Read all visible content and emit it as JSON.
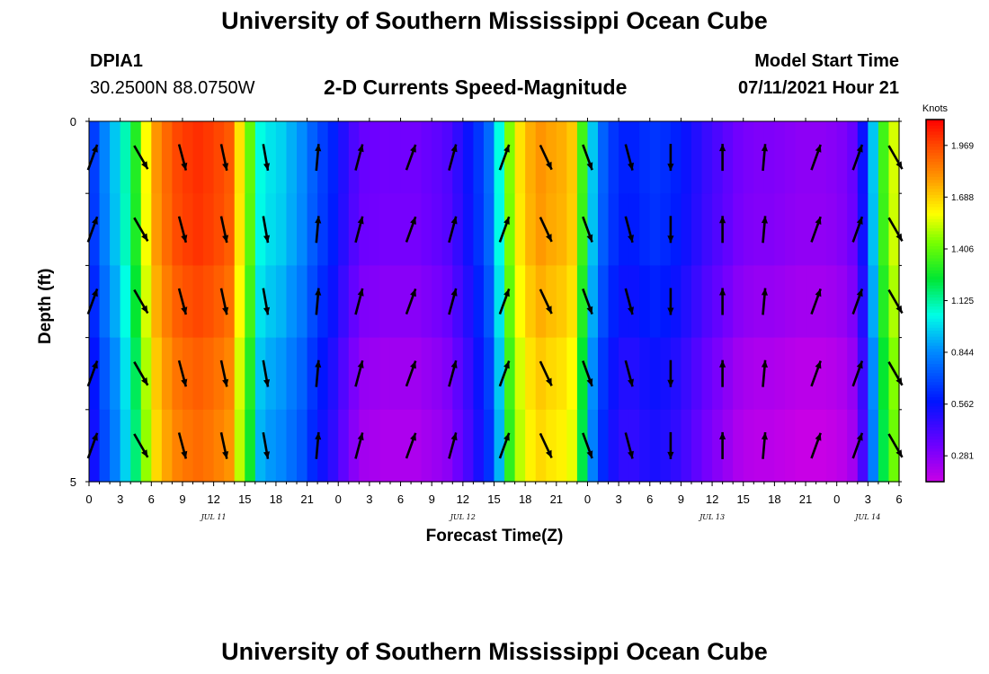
{
  "header": {
    "title": "University of Southern Mississippi Ocean Cube",
    "station_id": "DPIA1",
    "station_coords": "30.2500N  88.0750W",
    "chart_title": "2-D Currents Speed-Magnitude",
    "model_start_label": "Model Start Time",
    "model_start_value": "07/11/2021 Hour 21"
  },
  "footer": {
    "title": "University of Southern Mississippi Ocean Cube"
  },
  "chart_data": {
    "type": "heatmap",
    "title": "2-D Currents Speed-Magnitude",
    "xlabel": "Forecast Time(Z)",
    "ylabel": "Depth (ft)",
    "y_range": [
      0,
      5
    ],
    "y_tick_labels": [
      "0",
      "5"
    ],
    "x_tick_labels": [
      "0",
      "3",
      "6",
      "9",
      "12",
      "15",
      "18",
      "21",
      "0",
      "3",
      "6",
      "9",
      "12",
      "15",
      "18",
      "21",
      "0",
      "3",
      "6",
      "9",
      "12",
      "15",
      "18",
      "21",
      "0",
      "3",
      "6"
    ],
    "date_labels": [
      {
        "label": "JUL 11",
        "hour_index": 12
      },
      {
        "label": "JUL 12",
        "hour_index": 36
      },
      {
        "label": "JUL 13",
        "hour_index": 60
      },
      {
        "label": "JUL 14",
        "hour_index": 75
      }
    ],
    "hours_total": 78,
    "colorbar": {
      "unit": "Knots",
      "min": 0.14,
      "max": 2.11,
      "ticks": [
        "1.969",
        "1.688",
        "1.406",
        "1.125",
        "0.844",
        "0.562",
        "0.281"
      ]
    },
    "layers": 5,
    "speed_profile_knots": [
      [
        0,
        0.62
      ],
      [
        1,
        0.78
      ],
      [
        2,
        0.9
      ],
      [
        3,
        1.05
      ],
      [
        4,
        1.25
      ],
      [
        5,
        1.55
      ],
      [
        6,
        1.75
      ],
      [
        7,
        1.85
      ],
      [
        8,
        1.92
      ],
      [
        9,
        1.95
      ],
      [
        10,
        1.97
      ],
      [
        11,
        1.95
      ],
      [
        12,
        1.92
      ],
      [
        13,
        1.88
      ],
      [
        14,
        1.6
      ],
      [
        15,
        1.35
      ],
      [
        16,
        1.0
      ],
      [
        17,
        0.95
      ],
      [
        18,
        0.92
      ],
      [
        19,
        0.86
      ],
      [
        20,
        0.8
      ],
      [
        21,
        0.7
      ],
      [
        22,
        0.62
      ],
      [
        23,
        0.55
      ],
      [
        24,
        0.45
      ],
      [
        25,
        0.36
      ],
      [
        26,
        0.3
      ],
      [
        27,
        0.29
      ],
      [
        28,
        0.28
      ],
      [
        29,
        0.28
      ],
      [
        30,
        0.28
      ],
      [
        31,
        0.28
      ],
      [
        32,
        0.3
      ],
      [
        33,
        0.32
      ],
      [
        34,
        0.35
      ],
      [
        35,
        0.42
      ],
      [
        36,
        0.5
      ],
      [
        37,
        0.6
      ],
      [
        38,
        0.72
      ],
      [
        39,
        1.0
      ],
      [
        40,
        1.4
      ],
      [
        41,
        1.6
      ],
      [
        42,
        1.7
      ],
      [
        43,
        1.75
      ],
      [
        44,
        1.72
      ],
      [
        45,
        1.7
      ],
      [
        46,
        1.65
      ],
      [
        47,
        1.3
      ],
      [
        48,
        0.9
      ],
      [
        49,
        0.7
      ],
      [
        50,
        0.6
      ],
      [
        51,
        0.55
      ],
      [
        52,
        0.55
      ],
      [
        53,
        0.58
      ],
      [
        54,
        0.6
      ],
      [
        55,
        0.58
      ],
      [
        56,
        0.55
      ],
      [
        57,
        0.5
      ],
      [
        58,
        0.45
      ],
      [
        59,
        0.4
      ],
      [
        60,
        0.36
      ],
      [
        61,
        0.32
      ],
      [
        62,
        0.28
      ],
      [
        63,
        0.26
      ],
      [
        64,
        0.25
      ],
      [
        65,
        0.25
      ],
      [
        66,
        0.24
      ],
      [
        67,
        0.23
      ],
      [
        68,
        0.22
      ],
      [
        69,
        0.22
      ],
      [
        70,
        0.22
      ],
      [
        71,
        0.23
      ],
      [
        72,
        0.25
      ],
      [
        73,
        0.3
      ],
      [
        74,
        0.5
      ],
      [
        75,
        0.9
      ],
      [
        76,
        1.3
      ],
      [
        77,
        1.5
      ],
      [
        78,
        1.6
      ]
    ],
    "speed_layer_offsets": [
      0.05,
      0.04,
      0.0,
      -0.05,
      -0.08
    ],
    "current_vectors": [
      {
        "hour": 0,
        "dir_deg": 20
      },
      {
        "hour": 5,
        "dir_deg": 150
      },
      {
        "hour": 9,
        "dir_deg": 165
      },
      {
        "hour": 13,
        "dir_deg": 168
      },
      {
        "hour": 17,
        "dir_deg": 170
      },
      {
        "hour": 22,
        "dir_deg": 5
      },
      {
        "hour": 26,
        "dir_deg": 15
      },
      {
        "hour": 31,
        "dir_deg": 20
      },
      {
        "hour": 35,
        "dir_deg": 15
      },
      {
        "hour": 40,
        "dir_deg": 20
      },
      {
        "hour": 44,
        "dir_deg": 155
      },
      {
        "hour": 48,
        "dir_deg": 160
      },
      {
        "hour": 52,
        "dir_deg": 165
      },
      {
        "hour": 56,
        "dir_deg": 180
      },
      {
        "hour": 61,
        "dir_deg": 0
      },
      {
        "hour": 65,
        "dir_deg": 5
      },
      {
        "hour": 70,
        "dir_deg": 20
      },
      {
        "hour": 74,
        "dir_deg": 20
      },
      {
        "hour": 78,
        "dir_deg": 150
      }
    ]
  }
}
